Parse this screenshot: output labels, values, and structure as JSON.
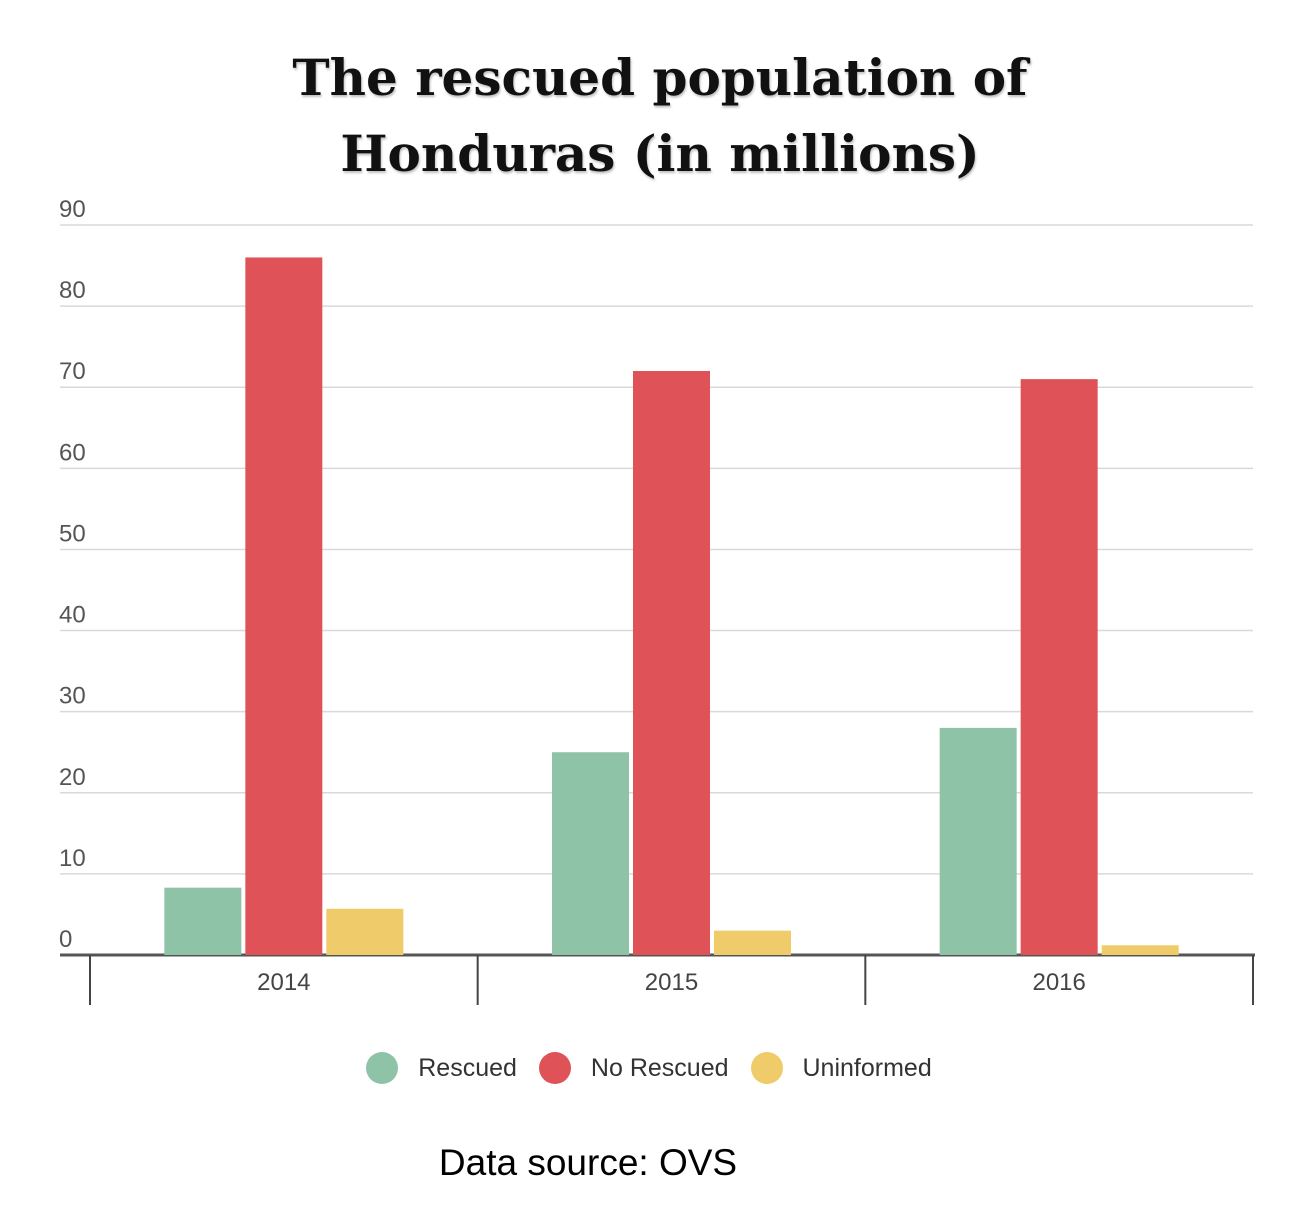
{
  "chart_data": {
    "type": "bar",
    "title_lines": [
      "The rescued population of",
      "Honduras (in millions)"
    ],
    "categories": [
      "2014",
      "2015",
      "2016"
    ],
    "series": [
      {
        "name": "Rescued",
        "color": "#8fc3a8",
        "values": [
          8.3,
          25,
          28
        ]
      },
      {
        "name": "No Rescued",
        "color": "#df5358",
        "values": [
          86,
          72,
          71
        ]
      },
      {
        "name": "Uninformed",
        "color": "#f0cb69",
        "values": [
          5.7,
          3,
          1.2
        ]
      }
    ],
    "ylim": [
      0,
      90
    ],
    "yticks": [
      0,
      10,
      20,
      30,
      40,
      50,
      60,
      70,
      80,
      90
    ],
    "grid": true,
    "legend_position": "bottom-center",
    "source": "Data source: OVS"
  }
}
